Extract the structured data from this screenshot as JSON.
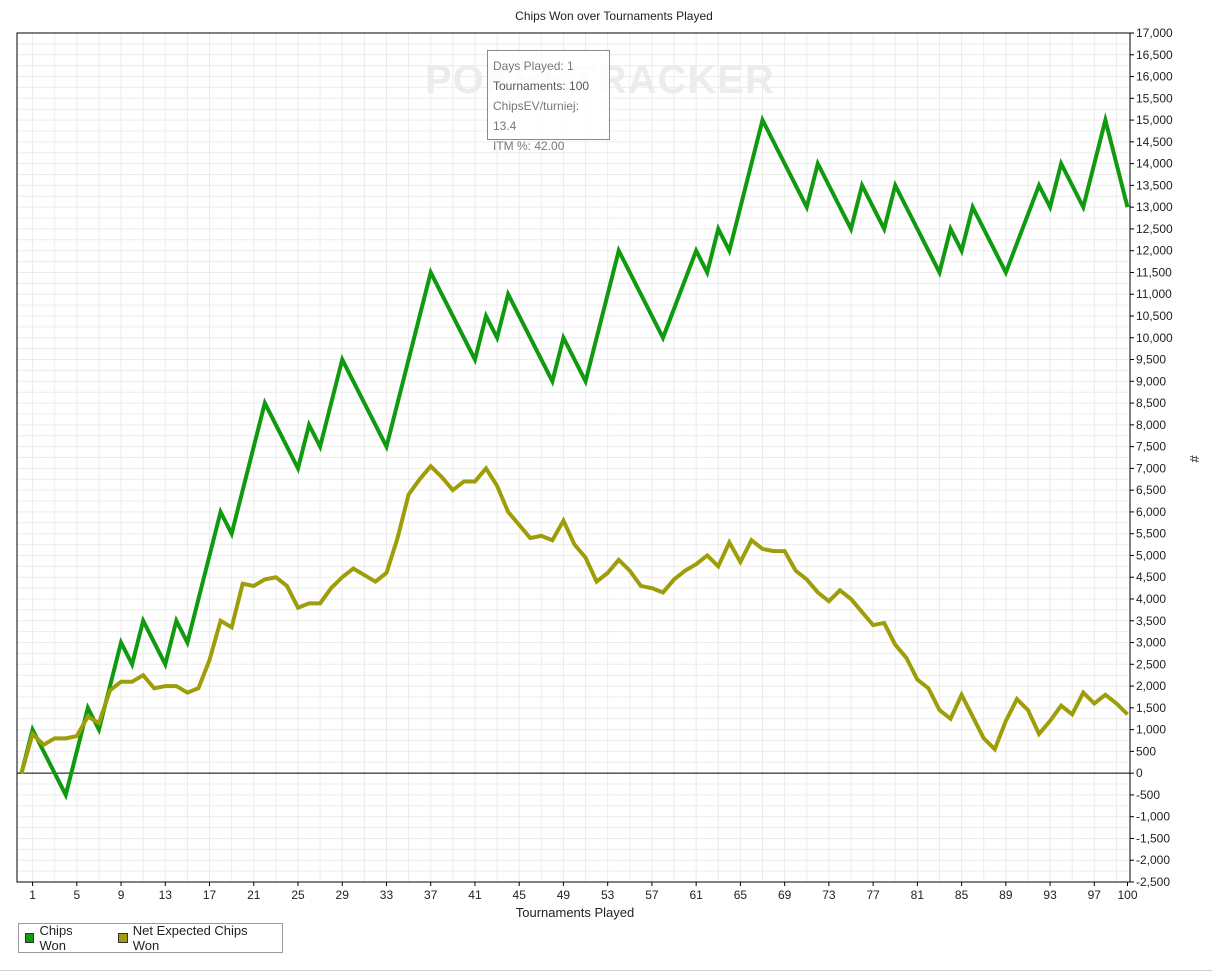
{
  "watermark": "POKERTRACKER",
  "tooltip": {
    "line1": "Days Played: 1",
    "line2": "Tournaments: 100",
    "line3": "ChipsEV/turniej: 13.4",
    "line4": "ITM %: 42.00"
  },
  "legend": {
    "item1": "Chips Won",
    "item2": "Net Expected Chips Won"
  },
  "chart_data": {
    "type": "line",
    "title": "Chips Won over Tournaments Played",
    "xlabel": "Tournaments Played",
    "ylabel": "#",
    "xlim": [
      0,
      100
    ],
    "ylim": [
      -2500,
      17000
    ],
    "x_ticks": [
      1,
      5,
      9,
      13,
      17,
      21,
      25,
      29,
      33,
      37,
      41,
      45,
      49,
      53,
      57,
      61,
      65,
      69,
      73,
      77,
      81,
      85,
      89,
      93,
      97,
      100
    ],
    "y_ticks": [
      -2500,
      -2000,
      -1500,
      -1000,
      -500,
      0,
      500,
      1000,
      1500,
      2000,
      2500,
      3000,
      3500,
      4000,
      4500,
      5000,
      5500,
      6000,
      6500,
      7000,
      7500,
      8000,
      8500,
      9000,
      9500,
      10000,
      10500,
      11000,
      11500,
      12000,
      12500,
      13000,
      13500,
      14000,
      14500,
      15000,
      15500,
      16000,
      16500,
      17000
    ],
    "y_tick_labels": [
      "-2,500",
      "-2,000",
      "-1,500",
      "-1,000",
      "-500",
      "0",
      "500",
      "1,000",
      "1,500",
      "2,000",
      "2,500",
      "3,000",
      "3,500",
      "4,000",
      "4,500",
      "5,000",
      "5,500",
      "6,000",
      "6,500",
      "7,000",
      "7,500",
      "8,000",
      "8,500",
      "9,000",
      "9,500",
      "10,000",
      "10,500",
      "11,000",
      "11,500",
      "12,000",
      "12,500",
      "13,000",
      "13,500",
      "14,000",
      "14,500",
      "15,000",
      "15,500",
      "16,000",
      "16,500",
      "17,000"
    ],
    "grid": true,
    "legend_position": "bottom-left",
    "colors": {
      "chips_won": "#0f9a0f",
      "net_expected": "#9e9e0a",
      "zero_line": "#000000",
      "grid": "#ececec"
    },
    "series": [
      {
        "name": "Chips Won",
        "color": "#0f9a0f",
        "points": [
          [
            0,
            0
          ],
          [
            1,
            1000
          ],
          [
            4,
            -500
          ],
          [
            6,
            1500
          ],
          [
            7,
            1000
          ],
          [
            9,
            3000
          ],
          [
            10,
            2500
          ],
          [
            11,
            3500
          ],
          [
            13,
            2500
          ],
          [
            14,
            3500
          ],
          [
            15,
            3000
          ],
          [
            18,
            6000
          ],
          [
            19,
            5500
          ],
          [
            22,
            8500
          ],
          [
            25,
            7000
          ],
          [
            26,
            8000
          ],
          [
            27,
            7500
          ],
          [
            29,
            9500
          ],
          [
            33,
            7500
          ],
          [
            37,
            11500
          ],
          [
            41,
            9500
          ],
          [
            42,
            10500
          ],
          [
            43,
            10000
          ],
          [
            44,
            11000
          ],
          [
            48,
            9000
          ],
          [
            49,
            10000
          ],
          [
            51,
            9000
          ],
          [
            54,
            12000
          ],
          [
            58,
            10000
          ],
          [
            61,
            12000
          ],
          [
            62,
            11500
          ],
          [
            63,
            12500
          ],
          [
            64,
            12000
          ],
          [
            67,
            15000
          ],
          [
            71,
            13000
          ],
          [
            72,
            14000
          ],
          [
            75,
            12500
          ],
          [
            76,
            13500
          ],
          [
            78,
            12500
          ],
          [
            79,
            13500
          ],
          [
            83,
            11500
          ],
          [
            84,
            12500
          ],
          [
            85,
            12000
          ],
          [
            86,
            13000
          ],
          [
            89,
            11500
          ],
          [
            92,
            13500
          ],
          [
            93,
            13000
          ],
          [
            94,
            14000
          ],
          [
            96,
            13000
          ],
          [
            98,
            15000
          ],
          [
            100,
            13000
          ]
        ]
      },
      {
        "name": "Net Expected Chips Won",
        "color": "#9e9e0a",
        "points": [
          [
            0,
            0
          ],
          [
            1,
            900
          ],
          [
            2,
            650
          ],
          [
            3,
            800
          ],
          [
            4,
            800
          ],
          [
            5,
            850
          ],
          [
            6,
            1300
          ],
          [
            7,
            1150
          ],
          [
            8,
            1900
          ],
          [
            9,
            2100
          ],
          [
            10,
            2100
          ],
          [
            11,
            2250
          ],
          [
            12,
            1950
          ],
          [
            13,
            2000
          ],
          [
            14,
            2000
          ],
          [
            15,
            1850
          ],
          [
            16,
            1950
          ],
          [
            17,
            2600
          ],
          [
            18,
            3500
          ],
          [
            19,
            3350
          ],
          [
            20,
            4350
          ],
          [
            21,
            4300
          ],
          [
            22,
            4450
          ],
          [
            23,
            4500
          ],
          [
            24,
            4300
          ],
          [
            25,
            3800
          ],
          [
            26,
            3900
          ],
          [
            27,
            3900
          ],
          [
            28,
            4250
          ],
          [
            29,
            4500
          ],
          [
            30,
            4700
          ],
          [
            31,
            4550
          ],
          [
            32,
            4400
          ],
          [
            33,
            4600
          ],
          [
            34,
            5400
          ],
          [
            35,
            6400
          ],
          [
            36,
            6750
          ],
          [
            37,
            7050
          ],
          [
            38,
            6800
          ],
          [
            39,
            6500
          ],
          [
            40,
            6700
          ],
          [
            41,
            6700
          ],
          [
            42,
            7000
          ],
          [
            43,
            6600
          ],
          [
            44,
            6000
          ],
          [
            45,
            5700
          ],
          [
            46,
            5400
          ],
          [
            47,
            5450
          ],
          [
            48,
            5350
          ],
          [
            49,
            5800
          ],
          [
            50,
            5250
          ],
          [
            51,
            4950
          ],
          [
            52,
            4400
          ],
          [
            53,
            4600
          ],
          [
            54,
            4900
          ],
          [
            55,
            4650
          ],
          [
            56,
            4300
          ],
          [
            57,
            4250
          ],
          [
            58,
            4150
          ],
          [
            59,
            4450
          ],
          [
            60,
            4650
          ],
          [
            61,
            4800
          ],
          [
            62,
            5000
          ],
          [
            63,
            4750
          ],
          [
            64,
            5300
          ],
          [
            65,
            4850
          ],
          [
            66,
            5350
          ],
          [
            67,
            5150
          ],
          [
            68,
            5100
          ],
          [
            69,
            5100
          ],
          [
            70,
            4650
          ],
          [
            71,
            4450
          ],
          [
            72,
            4150
          ],
          [
            73,
            3950
          ],
          [
            74,
            4200
          ],
          [
            75,
            4000
          ],
          [
            76,
            3700
          ],
          [
            77,
            3400
          ],
          [
            78,
            3450
          ],
          [
            79,
            2950
          ],
          [
            80,
            2650
          ],
          [
            81,
            2150
          ],
          [
            82,
            1950
          ],
          [
            83,
            1450
          ],
          [
            84,
            1250
          ],
          [
            85,
            1800
          ],
          [
            86,
            1300
          ],
          [
            87,
            800
          ],
          [
            88,
            550
          ],
          [
            89,
            1200
          ],
          [
            90,
            1700
          ],
          [
            91,
            1450
          ],
          [
            92,
            900
          ],
          [
            93,
            1200
          ],
          [
            94,
            1550
          ],
          [
            95,
            1350
          ],
          [
            96,
            1850
          ],
          [
            97,
            1600
          ],
          [
            98,
            1800
          ],
          [
            99,
            1600
          ],
          [
            100,
            1350
          ]
        ]
      }
    ]
  }
}
